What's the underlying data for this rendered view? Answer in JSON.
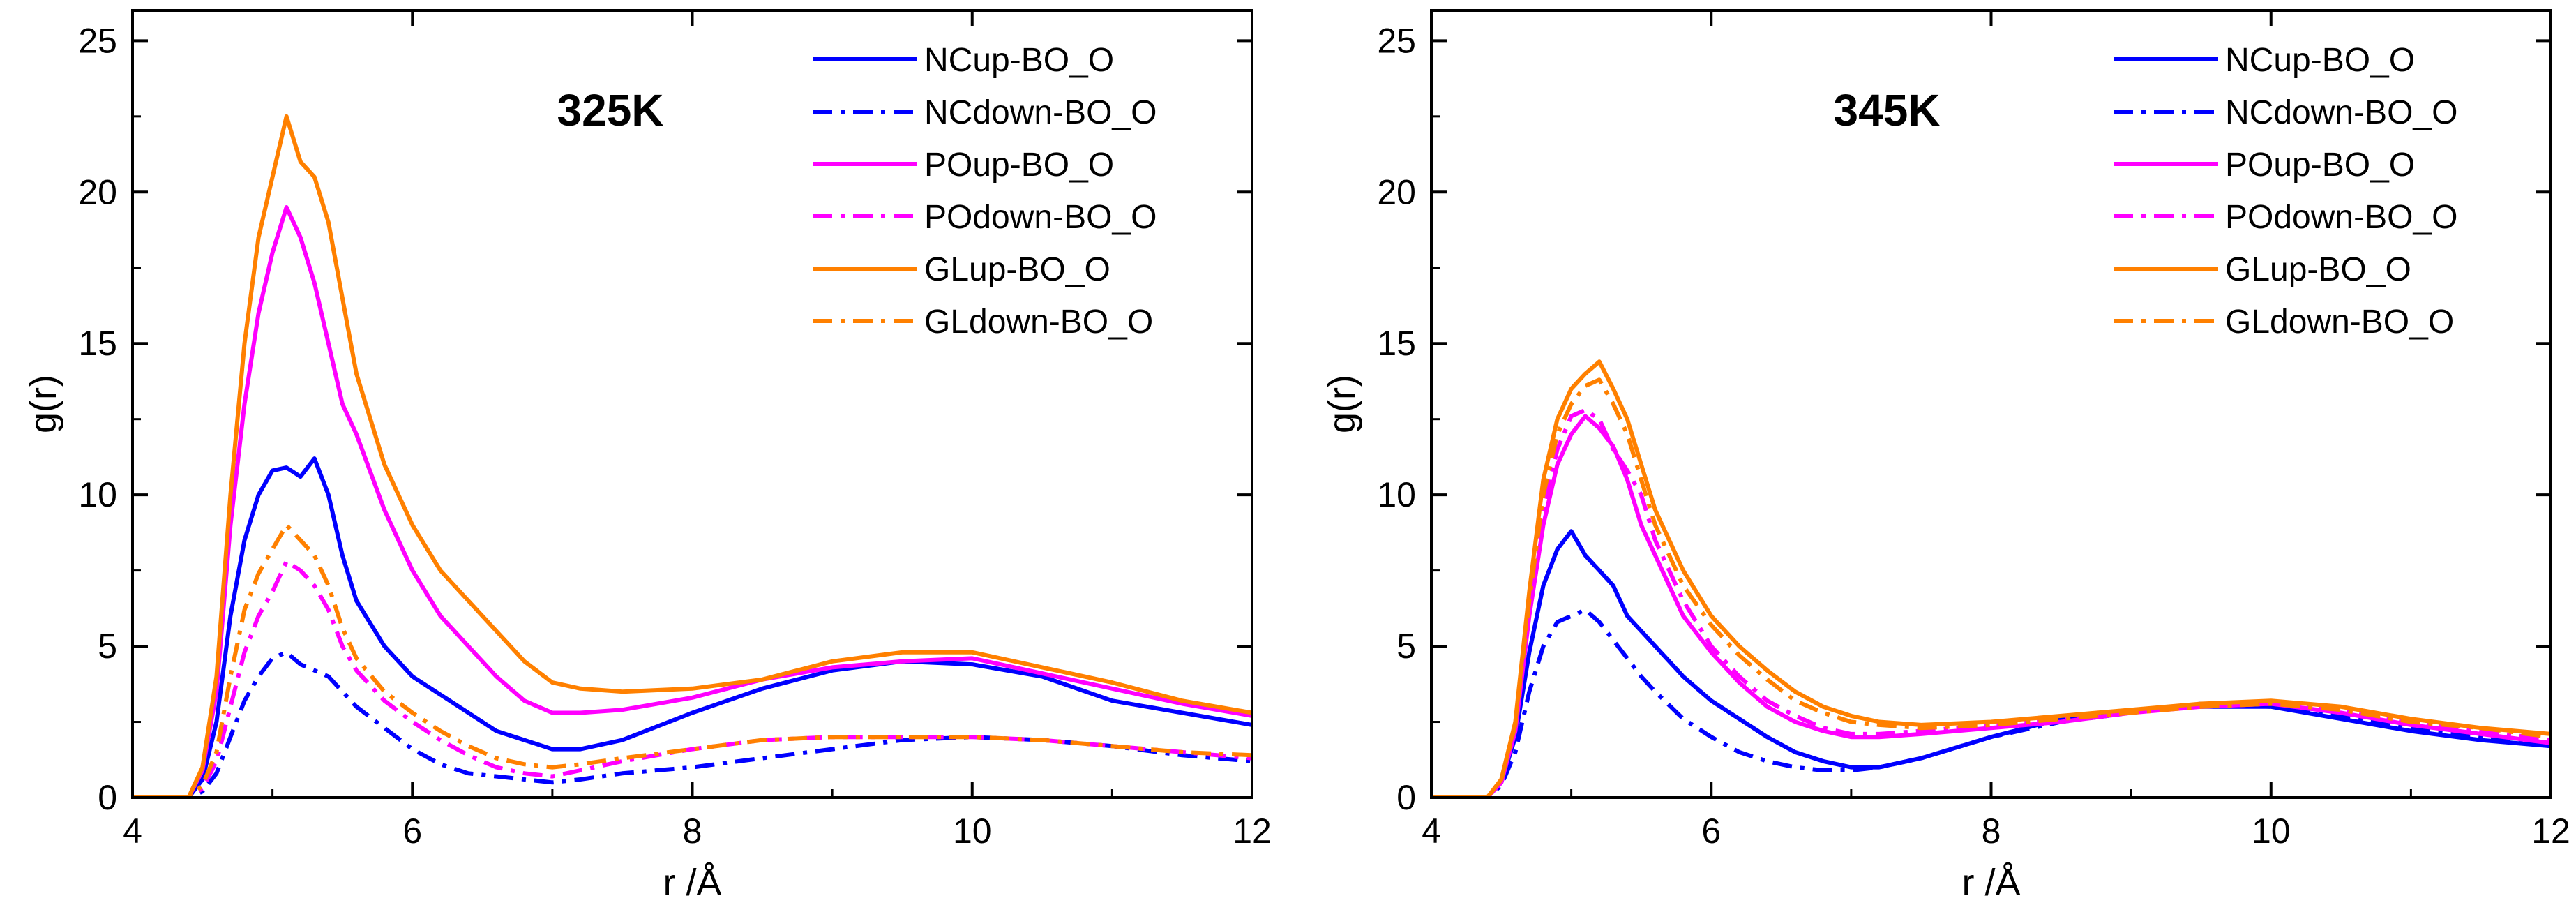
{
  "figure_title": "",
  "chart_data": [
    {
      "type": "line",
      "title": "325K",
      "xlabel": "r /Å",
      "ylabel": "g(r)",
      "xlim": [
        4,
        12
      ],
      "ylim": [
        0,
        26
      ],
      "xticks": [
        4,
        6,
        8,
        10,
        12
      ],
      "yticks": [
        0,
        5,
        10,
        15,
        20,
        25
      ],
      "x": [
        4.0,
        4.2,
        4.4,
        4.5,
        4.6,
        4.7,
        4.8,
        4.9,
        5.0,
        5.1,
        5.2,
        5.3,
        5.4,
        5.5,
        5.6,
        5.8,
        6.0,
        6.2,
        6.4,
        6.6,
        6.8,
        7.0,
        7.2,
        7.5,
        8.0,
        8.5,
        9.0,
        9.5,
        10.0,
        10.5,
        11.0,
        11.5,
        12.0
      ],
      "legend_position": "top-right",
      "series": [
        {
          "name": "NCup-BO_O",
          "color": "#0000ff",
          "dash": "solid",
          "values": [
            0,
            0,
            0,
            0.6,
            2.5,
            6.0,
            8.5,
            10.0,
            10.8,
            10.9,
            10.6,
            11.2,
            10.0,
            8.0,
            6.5,
            5.0,
            4.0,
            3.4,
            2.8,
            2.2,
            1.9,
            1.6,
            1.6,
            1.9,
            2.8,
            3.6,
            4.2,
            4.5,
            4.4,
            4.0,
            3.2,
            2.8,
            2.4
          ]
        },
        {
          "name": "NCdown-BO_O",
          "color": "#0000ff",
          "dash": "dashdot",
          "values": [
            0,
            0,
            0,
            0.2,
            0.8,
            2.0,
            3.2,
            4.0,
            4.6,
            4.8,
            4.4,
            4.2,
            4.0,
            3.5,
            3.0,
            2.3,
            1.6,
            1.1,
            0.8,
            0.7,
            0.6,
            0.5,
            0.6,
            0.8,
            1.0,
            1.3,
            1.6,
            1.9,
            2.0,
            1.9,
            1.7,
            1.4,
            1.2
          ]
        },
        {
          "name": "POup-BO_O",
          "color": "#ff00ff",
          "dash": "solid",
          "values": [
            0,
            0,
            0,
            0.9,
            3.5,
            9.0,
            13.0,
            16.0,
            18.0,
            19.5,
            18.5,
            17.0,
            15.0,
            13.0,
            12.0,
            9.5,
            7.5,
            6.0,
            5.0,
            4.0,
            3.2,
            2.8,
            2.8,
            2.9,
            3.3,
            3.9,
            4.3,
            4.5,
            4.6,
            4.1,
            3.6,
            3.1,
            2.7
          ]
        },
        {
          "name": "POdown-BO_O",
          "color": "#ff00ff",
          "dash": "dashdot",
          "values": [
            0,
            0,
            0,
            0.3,
            1.2,
            3.0,
            4.8,
            6.0,
            6.8,
            7.8,
            7.5,
            7.0,
            6.2,
            5.0,
            4.2,
            3.2,
            2.5,
            1.9,
            1.4,
            1.0,
            0.8,
            0.7,
            0.9,
            1.2,
            1.6,
            1.9,
            2.0,
            2.0,
            2.0,
            1.9,
            1.7,
            1.5,
            1.3
          ]
        },
        {
          "name": "GLup-BO_O",
          "color": "#ff8000",
          "dash": "solid",
          "values": [
            0,
            0,
            0,
            1.0,
            4.0,
            10.0,
            15.0,
            18.5,
            20.5,
            22.5,
            21.0,
            20.5,
            19.0,
            16.5,
            14.0,
            11.0,
            9.0,
            7.5,
            6.5,
            5.5,
            4.5,
            3.8,
            3.6,
            3.5,
            3.6,
            3.9,
            4.5,
            4.8,
            4.8,
            4.3,
            3.8,
            3.2,
            2.8
          ]
        },
        {
          "name": "GLdown-BO_O",
          "color": "#ff8000",
          "dash": "dashdot",
          "values": [
            0,
            0,
            0,
            0.4,
            1.5,
            4.0,
            6.2,
            7.4,
            8.2,
            9.0,
            8.5,
            8.0,
            7.0,
            5.6,
            4.6,
            3.5,
            2.8,
            2.2,
            1.7,
            1.3,
            1.1,
            1.0,
            1.1,
            1.3,
            1.6,
            1.9,
            2.0,
            2.0,
            2.0,
            1.9,
            1.7,
            1.5,
            1.4
          ]
        }
      ]
    },
    {
      "type": "line",
      "title": "345K",
      "xlabel": "r /Å",
      "ylabel": "g(r)",
      "xlim": [
        4,
        12
      ],
      "ylim": [
        0,
        26
      ],
      "xticks": [
        4,
        6,
        8,
        10,
        12
      ],
      "yticks": [
        0,
        5,
        10,
        15,
        20,
        25
      ],
      "x": [
        4.0,
        4.2,
        4.4,
        4.5,
        4.6,
        4.7,
        4.8,
        4.9,
        5.0,
        5.1,
        5.2,
        5.3,
        5.4,
        5.5,
        5.6,
        5.8,
        6.0,
        6.2,
        6.4,
        6.6,
        6.8,
        7.0,
        7.2,
        7.5,
        8.0,
        8.5,
        9.0,
        9.5,
        10.0,
        10.5,
        11.0,
        11.5,
        12.0
      ],
      "legend_position": "top-right",
      "series": [
        {
          "name": "NCup-BO_O",
          "color": "#0000ff",
          "dash": "solid",
          "values": [
            0,
            0,
            0,
            0.5,
            2.0,
            4.8,
            7.0,
            8.2,
            8.8,
            8.0,
            7.5,
            7.0,
            6.0,
            5.5,
            5.0,
            4.0,
            3.2,
            2.6,
            2.0,
            1.5,
            1.2,
            1.0,
            1.0,
            1.3,
            2.0,
            2.6,
            2.9,
            3.0,
            3.0,
            2.6,
            2.2,
            1.9,
            1.7
          ]
        },
        {
          "name": "NCdown-BO_O",
          "color": "#0000ff",
          "dash": "dashdot",
          "values": [
            0,
            0,
            0,
            0.4,
            1.5,
            3.5,
            5.0,
            5.8,
            6.0,
            6.2,
            5.8,
            5.2,
            4.6,
            4.0,
            3.5,
            2.6,
            2.0,
            1.5,
            1.2,
            1.0,
            0.9,
            0.9,
            1.0,
            1.3,
            2.0,
            2.5,
            2.8,
            3.1,
            3.0,
            2.7,
            2.3,
            2.0,
            1.7
          ]
        },
        {
          "name": "POup-BO_O",
          "color": "#ff00ff",
          "dash": "solid",
          "values": [
            0,
            0,
            0,
            0.5,
            2.2,
            6.0,
            9.0,
            11.0,
            12.0,
            12.6,
            12.2,
            11.6,
            10.5,
            9.0,
            8.0,
            6.0,
            4.8,
            3.8,
            3.0,
            2.5,
            2.2,
            2.0,
            2.0,
            2.1,
            2.3,
            2.5,
            2.8,
            3.0,
            3.1,
            2.8,
            2.4,
            2.1,
            1.8
          ]
        },
        {
          "name": "POdown-BO_O",
          "color": "#ff00ff",
          "dash": "dashdot",
          "values": [
            0,
            0,
            0,
            0.5,
            2.3,
            6.2,
            9.5,
            11.5,
            12.6,
            12.8,
            12.5,
            11.5,
            10.8,
            10.0,
            8.5,
            6.5,
            5.0,
            4.0,
            3.2,
            2.7,
            2.3,
            2.1,
            2.1,
            2.2,
            2.4,
            2.6,
            2.9,
            3.0,
            3.1,
            2.9,
            2.5,
            2.2,
            1.9
          ]
        },
        {
          "name": "GLup-BO_O",
          "color": "#ff8000",
          "dash": "solid",
          "values": [
            0,
            0,
            0,
            0.6,
            2.5,
            6.8,
            10.5,
            12.5,
            13.5,
            14.0,
            14.4,
            13.5,
            12.5,
            11.0,
            9.5,
            7.5,
            6.0,
            5.0,
            4.2,
            3.5,
            3.0,
            2.7,
            2.5,
            2.4,
            2.5,
            2.7,
            2.9,
            3.1,
            3.2,
            3.0,
            2.6,
            2.3,
            2.1
          ]
        },
        {
          "name": "GLdown-BO_O",
          "color": "#ff8000",
          "dash": "dashdot",
          "values": [
            0,
            0,
            0,
            0.6,
            2.4,
            6.5,
            10.0,
            12.0,
            13.0,
            13.6,
            13.8,
            13.0,
            12.0,
            10.5,
            9.0,
            7.0,
            5.7,
            4.7,
            3.9,
            3.2,
            2.8,
            2.5,
            2.4,
            2.3,
            2.4,
            2.6,
            2.8,
            3.0,
            3.1,
            2.9,
            2.5,
            2.3,
            2.0
          ]
        }
      ]
    }
  ]
}
